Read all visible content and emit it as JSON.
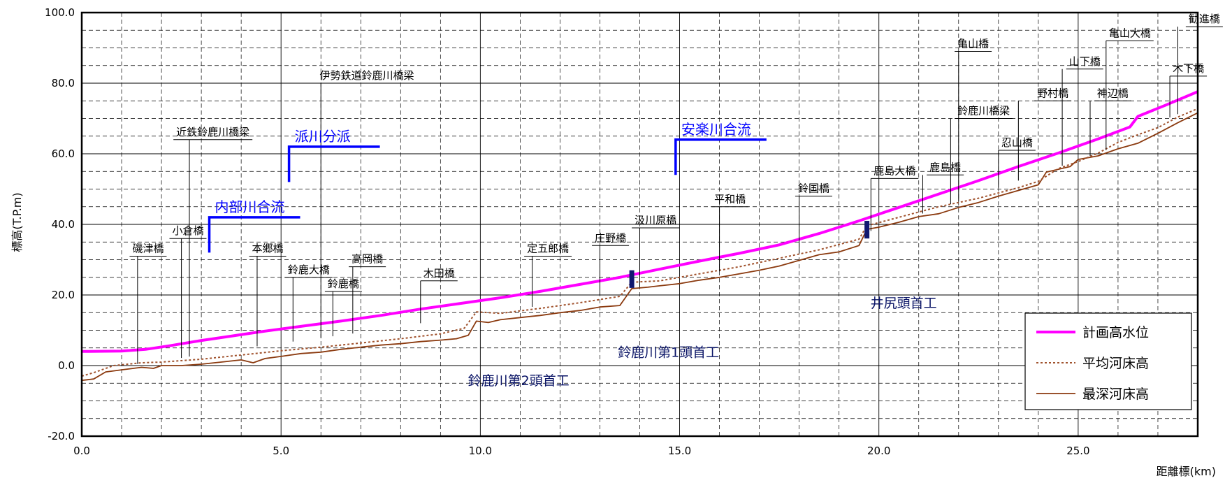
{
  "chart_data": {
    "type": "line",
    "xlabel": "距離標(km)",
    "ylabel": "標高(T.P.m)",
    "xlim": [
      0,
      28
    ],
    "ylim": [
      -20,
      100
    ],
    "x_ticks": [
      "0.0",
      "5.0",
      "10.0",
      "15.0",
      "20.0",
      "25.0"
    ],
    "y_ticks": [
      "100.0",
      "80.0",
      "60.0",
      "40.0",
      "20.0",
      "0.0",
      "-20.0"
    ],
    "grid": true,
    "legend_position": "bottom-right",
    "series": [
      {
        "name": "計画高水位",
        "color": "#ff00ff",
        "style": "solid-thick",
        "points": [
          [
            0,
            4
          ],
          [
            1.0,
            4.1
          ],
          [
            1.6,
            4.6
          ],
          [
            2.2,
            5.6
          ],
          [
            3.0,
            7.1
          ],
          [
            3.6,
            8.1
          ],
          [
            4.5,
            9.6
          ],
          [
            5.5,
            11.1
          ],
          [
            6.5,
            12.6
          ],
          [
            7.5,
            14.2
          ],
          [
            8.5,
            16.0
          ],
          [
            9.5,
            17.6
          ],
          [
            10.5,
            19.2
          ],
          [
            11.5,
            21.0
          ],
          [
            12.5,
            23.0
          ],
          [
            13.5,
            25.0
          ],
          [
            14.5,
            27.3
          ],
          [
            15.5,
            29.6
          ],
          [
            16.5,
            31.8
          ],
          [
            17.5,
            34.2
          ],
          [
            18.5,
            37.4
          ],
          [
            19.5,
            41.0
          ],
          [
            20.5,
            44.8
          ],
          [
            21.5,
            48.6
          ],
          [
            22.5,
            52.4
          ],
          [
            23.5,
            56.4
          ],
          [
            24.5,
            60.2
          ],
          [
            25.5,
            64.2
          ],
          [
            26.3,
            67.6
          ],
          [
            26.5,
            70.6
          ],
          [
            27.2,
            73.8
          ],
          [
            28.0,
            77.6
          ]
        ]
      },
      {
        "name": "平均河床高",
        "color": "#a0522d",
        "style": "dotted",
        "points": [
          [
            0,
            -3.0
          ],
          [
            0.3,
            -2.0
          ],
          [
            0.8,
            0
          ],
          [
            1.5,
            0.8
          ],
          [
            2.0,
            1.0
          ],
          [
            3.0,
            1.8
          ],
          [
            4.0,
            3.0
          ],
          [
            5.0,
            4.2
          ],
          [
            6.0,
            5.2
          ],
          [
            7.0,
            6.4
          ],
          [
            8.0,
            7.6
          ],
          [
            9.0,
            9.0
          ],
          [
            9.6,
            10.6
          ],
          [
            9.9,
            15.2
          ],
          [
            10.5,
            14.8
          ],
          [
            11.5,
            16.2
          ],
          [
            12.5,
            17.8
          ],
          [
            13.5,
            19.6
          ],
          [
            13.8,
            23.6
          ],
          [
            14.5,
            24.0
          ],
          [
            15.5,
            26.0
          ],
          [
            16.5,
            28.0
          ],
          [
            17.5,
            30.4
          ],
          [
            18.5,
            32.8
          ],
          [
            19.5,
            35.8
          ],
          [
            19.7,
            39.6
          ],
          [
            20.5,
            42.0
          ],
          [
            21.5,
            45.0
          ],
          [
            22.5,
            47.4
          ],
          [
            23.5,
            50.4
          ],
          [
            24.0,
            52.2
          ],
          [
            24.5,
            55.8
          ],
          [
            25.0,
            57.8
          ],
          [
            25.5,
            60.2
          ],
          [
            26.0,
            63.2
          ],
          [
            26.5,
            65.4
          ],
          [
            27.0,
            67.4
          ],
          [
            27.5,
            70.4
          ],
          [
            28.0,
            72.8
          ]
        ]
      },
      {
        "name": "最深河床高",
        "color": "#8b3a0f",
        "style": "solid",
        "points": [
          [
            0,
            -4.2
          ],
          [
            0.3,
            -3.8
          ],
          [
            0.6,
            -1.8
          ],
          [
            1.0,
            -1.2
          ],
          [
            1.5,
            -0.5
          ],
          [
            1.8,
            -0.8
          ],
          [
            2.0,
            0
          ],
          [
            2.5,
            0
          ],
          [
            3.0,
            0.4
          ],
          [
            3.5,
            1.0
          ],
          [
            4.0,
            1.6
          ],
          [
            4.3,
            0.8
          ],
          [
            4.6,
            2.0
          ],
          [
            5.0,
            2.6
          ],
          [
            5.5,
            3.4
          ],
          [
            6.0,
            3.8
          ],
          [
            6.5,
            4.6
          ],
          [
            7.0,
            5.2
          ],
          [
            7.5,
            5.8
          ],
          [
            8.0,
            6.2
          ],
          [
            8.5,
            6.8
          ],
          [
            9.0,
            7.2
          ],
          [
            9.4,
            7.6
          ],
          [
            9.7,
            8.6
          ],
          [
            9.9,
            12.6
          ],
          [
            10.2,
            12.2
          ],
          [
            10.5,
            13.0
          ],
          [
            11.0,
            13.6
          ],
          [
            11.5,
            14.2
          ],
          [
            12.0,
            15.0
          ],
          [
            12.5,
            15.6
          ],
          [
            13.0,
            16.6
          ],
          [
            13.5,
            17.0
          ],
          [
            13.8,
            21.8
          ],
          [
            14.2,
            22.2
          ],
          [
            14.5,
            22.6
          ],
          [
            15.0,
            23.2
          ],
          [
            15.5,
            24.2
          ],
          [
            16.0,
            25.0
          ],
          [
            16.5,
            26.0
          ],
          [
            17.0,
            27.0
          ],
          [
            17.5,
            28.2
          ],
          [
            18.0,
            29.8
          ],
          [
            18.5,
            31.4
          ],
          [
            19.0,
            32.2
          ],
          [
            19.5,
            34.0
          ],
          [
            19.7,
            38.6
          ],
          [
            20.0,
            39.2
          ],
          [
            20.5,
            40.6
          ],
          [
            21.0,
            42.2
          ],
          [
            21.5,
            43.0
          ],
          [
            22.0,
            44.8
          ],
          [
            22.5,
            46.2
          ],
          [
            23.0,
            48.0
          ],
          [
            23.5,
            49.6
          ],
          [
            24.0,
            51.2
          ],
          [
            24.2,
            54.8
          ],
          [
            24.8,
            56.4
          ],
          [
            25.0,
            58.4
          ],
          [
            25.5,
            59.4
          ],
          [
            26.0,
            61.4
          ],
          [
            26.5,
            63.0
          ],
          [
            27.0,
            65.8
          ],
          [
            27.5,
            68.8
          ],
          [
            28.0,
            71.6
          ]
        ]
      }
    ],
    "bridges": [
      {
        "label": "磯津橋",
        "x": 1.4
      },
      {
        "label": "小倉橋",
        "x": 2.5
      },
      {
        "label": "近鉄鈴鹿川橋梁",
        "x": 2.7
      },
      {
        "label": "本郷橋",
        "x": 4.4
      },
      {
        "label": "鈴鹿大橋",
        "x": 5.3
      },
      {
        "label": "伊勢鉄道鈴鹿川橋梁",
        "x": 6.0
      },
      {
        "label": "鈴鹿橋",
        "x": 6.3
      },
      {
        "label": "高岡橋",
        "x": 6.8
      },
      {
        "label": "木田橋",
        "x": 8.5
      },
      {
        "label": "定五郎橋",
        "x": 11.3
      },
      {
        "label": "庄野橋",
        "x": 13.0
      },
      {
        "label": "汲川原橋",
        "x": 14.0
      },
      {
        "label": "平和橋",
        "x": 16.0
      },
      {
        "label": "鈴国橋",
        "x": 18.0
      },
      {
        "label": "鹿島大橋",
        "x": 19.8
      },
      {
        "label": "鹿島橋",
        "x": 21.1
      },
      {
        "label": "鈴鹿川橋梁",
        "x": 21.8
      },
      {
        "label": "亀山橋",
        "x": 22.0
      },
      {
        "label": "忍山橋",
        "x": 23.0
      },
      {
        "label": "野村橋",
        "x": 23.5
      },
      {
        "label": "山下橋",
        "x": 24.6
      },
      {
        "label": "神辺橋",
        "x": 25.3
      },
      {
        "label": "亀山大橋",
        "x": 25.7
      },
      {
        "label": "木下橋",
        "x": 27.3
      },
      {
        "label": "勧進橋",
        "x": 27.5
      }
    ],
    "confluences": [
      {
        "label": "内部川合流",
        "x": 3.2
      },
      {
        "label": "派川分派",
        "x": 5.2
      },
      {
        "label": "安楽川合流",
        "x": 14.9
      }
    ],
    "weirs": [
      {
        "label": "鈴鹿川第2頭首工",
        "x": 9.9
      },
      {
        "label": "鈴鹿川第1頭首工",
        "x": 13.8
      },
      {
        "label": "井尻頭首工",
        "x": 19.7
      }
    ]
  }
}
